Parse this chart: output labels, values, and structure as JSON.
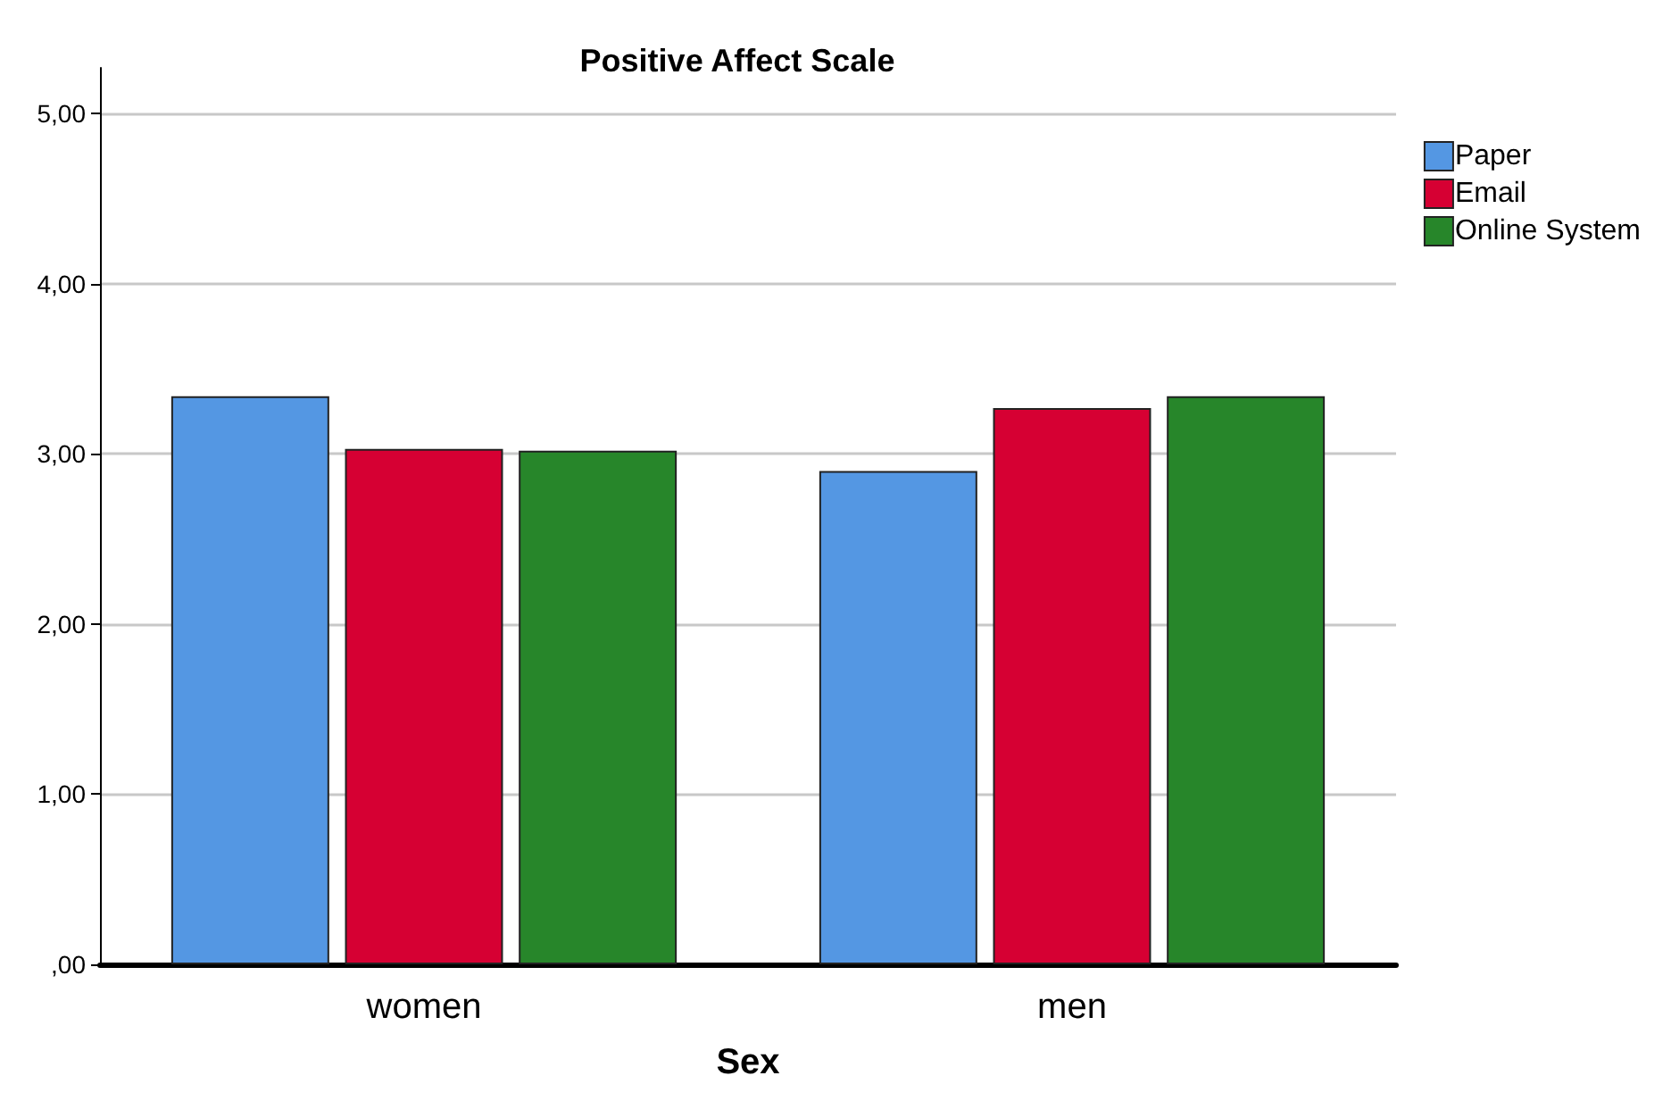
{
  "chart_data": {
    "type": "bar",
    "title": "Positive Affect Scale",
    "xlabel": "Sex",
    "categories": [
      "women",
      "men"
    ],
    "series": [
      {
        "name": "Paper",
        "color": "#5497e3",
        "values": [
          3.34,
          2.9
        ]
      },
      {
        "name": "Email",
        "color": "#d60033",
        "values": [
          3.03,
          3.27
        ]
      },
      {
        "name": "Online System",
        "color": "#27862a",
        "values": [
          3.02,
          3.34
        ]
      }
    ],
    "ylim": [
      0,
      5.27
    ],
    "yticks": [
      {
        "value": 0,
        "label": ",00"
      },
      {
        "value": 1,
        "label": "1,00"
      },
      {
        "value": 2,
        "label": "2,00"
      },
      {
        "value": 3,
        "label": "3,00"
      },
      {
        "value": 4,
        "label": "4,00"
      },
      {
        "value": 5,
        "label": "5,00"
      }
    ],
    "grid": "y",
    "legend": "top right"
  }
}
